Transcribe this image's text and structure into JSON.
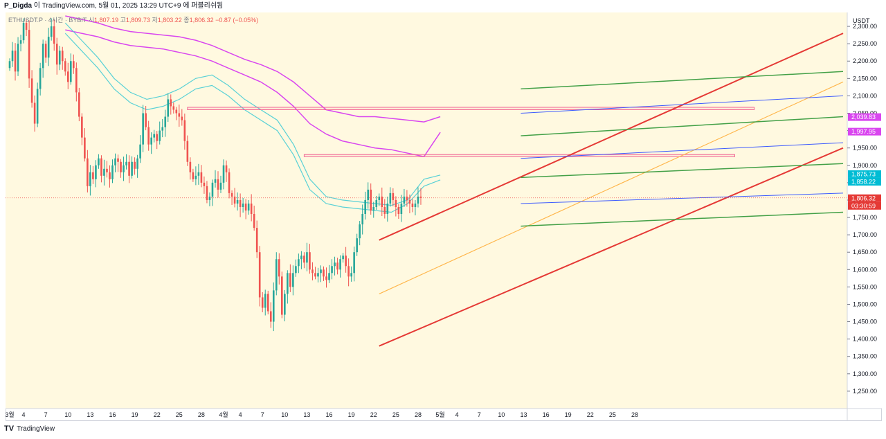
{
  "header": {
    "author": "P_Digda",
    "publish_text": "이 TradingView.com, 5월 01, 2025 13:29 UTC+9 에 퍼블리쉬됨"
  },
  "legend": {
    "symbol": "ETHUSDT.P · 4시간 · BYBIT",
    "open_label": "시",
    "open": "1,807.19",
    "high_label": "고",
    "high": "1,809.73",
    "low_label": "저",
    "low": "1,803.22",
    "close_label": "종",
    "close": "1,806.32",
    "change": "−0.87 (−0.05%)"
  },
  "footer": {
    "brand": "TradingView",
    "logo": "TV"
  },
  "colors": {
    "background": "#fff9e0",
    "candle_up": "#26a69a",
    "candle_down": "#ef5350",
    "channel": "#e53935",
    "green_lines": "#43a047",
    "blue_lines": "#3d5afe",
    "orange_line": "#ffb74d",
    "purple_bands": "#d946ef",
    "cyan_bands": "#5ad1d6",
    "zone": "#f06292"
  },
  "chart_data": {
    "type": "candlestick",
    "title": "ETHUSDT.P · 4시간 · BYBIT",
    "y_unit": "USDT",
    "ylim": [
      1200,
      2340
    ],
    "y_ticks": [
      "2,300.00",
      "2,250.00",
      "2,200.00",
      "2,150.00",
      "2,100.00",
      "2,050.00",
      "2,000.00",
      "1,950.00",
      "1,900.00",
      "1,850.00",
      "1,800.00",
      "1,750.00",
      "1,700.00",
      "1,650.00",
      "1,600.00",
      "1,550.00",
      "1,500.00",
      "1,450.00",
      "1,400.00",
      "1,350.00",
      "1,300.00",
      "1,250.00"
    ],
    "x_ticks": [
      "3월",
      "4",
      "7",
      "10",
      "13",
      "16",
      "19",
      "22",
      "25",
      "28",
      "4월",
      "4",
      "7",
      "10",
      "13",
      "16",
      "19",
      "22",
      "25",
      "28",
      "5월",
      "4",
      "7",
      "10",
      "13",
      "16",
      "19",
      "22",
      "25",
      "28"
    ],
    "x_tick_positions": [
      0,
      5,
      13,
      21,
      29,
      37,
      45,
      53,
      61,
      69,
      77,
      83,
      91,
      99,
      107,
      115,
      123,
      131,
      139,
      147,
      155,
      161,
      169,
      177,
      185,
      193,
      201,
      209,
      217,
      225
    ],
    "price_labels": [
      {
        "text": "2,039.83",
        "value": 2039.83,
        "color": "#d946ef"
      },
      {
        "text": "1,997.95",
        "value": 1997.95,
        "color": "#d946ef"
      },
      {
        "text": "1,875.73",
        "value": 1875.73,
        "color": "#00bcd4"
      },
      {
        "text": "1,858.22",
        "value": 1858.22,
        "color": "#00bcd4"
      },
      {
        "text": "1,806.32",
        "value": 1806.32,
        "color": "#e53935"
      },
      {
        "text": "03:30:59",
        "value": null,
        "color": "#e53935"
      }
    ],
    "current_price": 1806.32,
    "closes": [
      2200,
      2230,
      2170,
      2250,
      2260,
      2310,
      2290,
      2150,
      2080,
      2020,
      2120,
      2180,
      2250,
      2210,
      2270,
      2300,
      2250,
      2190,
      2230,
      2200,
      2170,
      2140,
      2200,
      2180,
      2110,
      2040,
      1980,
      1920,
      1840,
      1880,
      1860,
      1900,
      1920,
      1870,
      1890,
      1880,
      1860,
      1900,
      1920,
      1910,
      1880,
      1900,
      1910,
      1870,
      1910,
      1890,
      1920,
      1960,
      2050,
      2010,
      1960,
      1980,
      1990,
      1970,
      2000,
      2010,
      2040,
      2090,
      2070,
      2060,
      2050,
      2040,
      2030,
      1970,
      1910,
      1880,
      1860,
      1870,
      1880,
      1850,
      1840,
      1800,
      1810,
      1850,
      1860,
      1830,
      1850,
      1900,
      1880,
      1820,
      1810,
      1790,
      1800,
      1780,
      1790,
      1770,
      1790,
      1760,
      1720,
      1650,
      1520,
      1490,
      1530,
      1480,
      1450,
      1540,
      1630,
      1580,
      1470,
      1530,
      1590,
      1550,
      1590,
      1610,
      1630,
      1640,
      1620,
      1650,
      1600,
      1590,
      1580,
      1590,
      1600,
      1580,
      1570,
      1590,
      1610,
      1620,
      1600,
      1630,
      1640,
      1610,
      1580,
      1590,
      1650,
      1690,
      1730,
      1760,
      1800,
      1830,
      1770,
      1780,
      1800,
      1810,
      1780,
      1760,
      1790,
      1820,
      1800,
      1780,
      1760,
      1790,
      1810,
      1800,
      1790,
      1780,
      1790,
      1810,
      1806.32
    ],
    "channel_upper": {
      "points": [
        [
          133,
          1685
        ],
        [
          300,
          2280
        ]
      ]
    },
    "channel_lower": {
      "points": [
        [
          133,
          1380
        ],
        [
          300,
          1950
        ]
      ]
    },
    "orange_line": {
      "points": [
        [
          133,
          1530
        ],
        [
          300,
          2140
        ]
      ]
    },
    "green_lines": [
      {
        "points": [
          [
            184,
            2120
          ],
          [
            300,
            2170
          ]
        ]
      },
      {
        "points": [
          [
            184,
            1985
          ],
          [
            300,
            2040
          ]
        ]
      },
      {
        "points": [
          [
            184,
            1865
          ],
          [
            300,
            1905
          ]
        ]
      },
      {
        "points": [
          [
            184,
            1725
          ],
          [
            300,
            1765
          ]
        ]
      }
    ],
    "blue_lines": [
      {
        "points": [
          [
            184,
            2050
          ],
          [
            300,
            2100
          ]
        ]
      },
      {
        "points": [
          [
            184,
            1920
          ],
          [
            300,
            1965
          ]
        ]
      },
      {
        "points": [
          [
            184,
            1790
          ],
          [
            300,
            1820
          ]
        ]
      }
    ],
    "zones": [
      {
        "x0": 64,
        "x1": 268,
        "y0": 2067,
        "y1": 2060
      },
      {
        "x0": 106,
        "x1": 261,
        "y0": 1931,
        "y1": 1925
      }
    ],
    "purple_upper": [
      2330,
      2320,
      2310,
      2295,
      2285,
      2280,
      2275,
      2270,
      2260,
      2245,
      2225,
      2205,
      2190,
      2170,
      2140,
      2100,
      2060,
      2050,
      2040,
      2040,
      2035,
      2030,
      2025,
      2040
    ],
    "purple_lower": [
      2290,
      2280,
      2270,
      2255,
      2245,
      2240,
      2235,
      2225,
      2215,
      2200,
      2180,
      2160,
      2140,
      2110,
      2070,
      2020,
      1990,
      1970,
      1960,
      1950,
      1945,
      1935,
      1925,
      1995
    ],
    "cyan_upper": [
      2310,
      2260,
      2210,
      2150,
      2110,
      2090,
      2100,
      2120,
      2150,
      2160,
      2130,
      2090,
      2060,
      2030,
      1960,
      1860,
      1810,
      1800,
      1795,
      1790,
      1785,
      1800,
      1860,
      1872
    ],
    "cyan_lower": [
      2280,
      2230,
      2180,
      2120,
      2080,
      2060,
      2070,
      2090,
      2120,
      2130,
      2100,
      2060,
      2030,
      2000,
      1930,
      1830,
      1790,
      1780,
      1775,
      1770,
      1765,
      1790,
      1840,
      1858
    ]
  }
}
